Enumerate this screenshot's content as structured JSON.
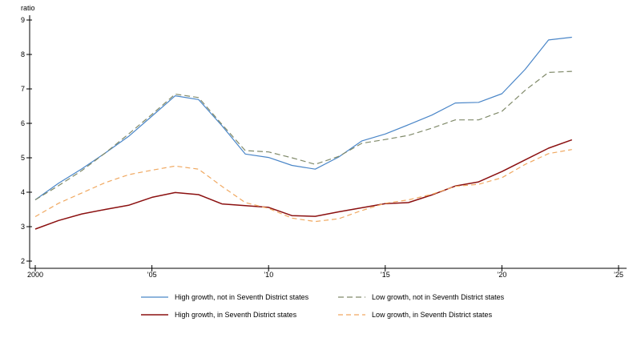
{
  "chart_data": {
    "type": "line",
    "ylabel": "ratio",
    "xlabel": "",
    "xlim": [
      2000,
      2025
    ],
    "ylim": [
      2,
      9
    ],
    "x_ticks": [
      2000,
      2005,
      2010,
      2015,
      2020,
      2025
    ],
    "x_tick_labels": [
      "2000",
      "’05",
      "’10",
      "’15",
      "’20",
      "’25"
    ],
    "y_ticks": [
      2,
      3,
      4,
      5,
      6,
      7,
      8,
      9
    ],
    "y_tick_labels": [
      "2",
      "3",
      "4",
      "5",
      "6",
      "7",
      "8",
      "9"
    ],
    "x": [
      2000,
      2001,
      2002,
      2003,
      2004,
      2005,
      2006,
      2007,
      2008,
      2009,
      2010,
      2011,
      2012,
      2013,
      2014,
      2015,
      2016,
      2017,
      2018,
      2019,
      2020,
      2021,
      2022,
      2023
    ],
    "series": [
      {
        "name": "High growth, not in Seventh District states",
        "color": "#4a86c8",
        "dash": "solid",
        "values": [
          3.78,
          4.26,
          4.68,
          5.14,
          5.62,
          6.21,
          6.8,
          6.69,
          5.93,
          5.11,
          5.01,
          4.78,
          4.67,
          5.02,
          5.49,
          5.69,
          5.96,
          6.24,
          6.59,
          6.61,
          6.86,
          7.57,
          8.42,
          8.5
        ]
      },
      {
        "name": "Low growth, not in Seventh District states",
        "color": "#808a6a",
        "dash": "long-dash",
        "values": [
          3.78,
          4.19,
          4.63,
          5.14,
          5.69,
          6.26,
          6.85,
          6.75,
          5.97,
          5.21,
          5.17,
          5.0,
          4.81,
          5.04,
          5.42,
          5.53,
          5.65,
          5.86,
          6.1,
          6.1,
          6.35,
          6.96,
          7.48,
          7.51
        ]
      },
      {
        "name": "High growth, in Seventh District states",
        "color": "#8b1010",
        "dash": "solid",
        "values": [
          2.93,
          3.18,
          3.37,
          3.5,
          3.62,
          3.85,
          3.99,
          3.93,
          3.66,
          3.61,
          3.56,
          3.32,
          3.3,
          3.43,
          3.55,
          3.67,
          3.7,
          3.92,
          4.18,
          4.3,
          4.6,
          4.94,
          5.28,
          5.52
        ]
      },
      {
        "name": "Low growth, in Seventh District states",
        "color": "#f0a860",
        "dash": "short-dash",
        "values": [
          3.29,
          3.68,
          3.98,
          4.28,
          4.51,
          4.64,
          4.76,
          4.67,
          4.17,
          3.7,
          3.53,
          3.25,
          3.15,
          3.23,
          3.47,
          3.68,
          3.78,
          3.94,
          4.17,
          4.23,
          4.42,
          4.81,
          5.12,
          5.24
        ]
      }
    ],
    "grid": false,
    "legend_placement": "bottom"
  }
}
